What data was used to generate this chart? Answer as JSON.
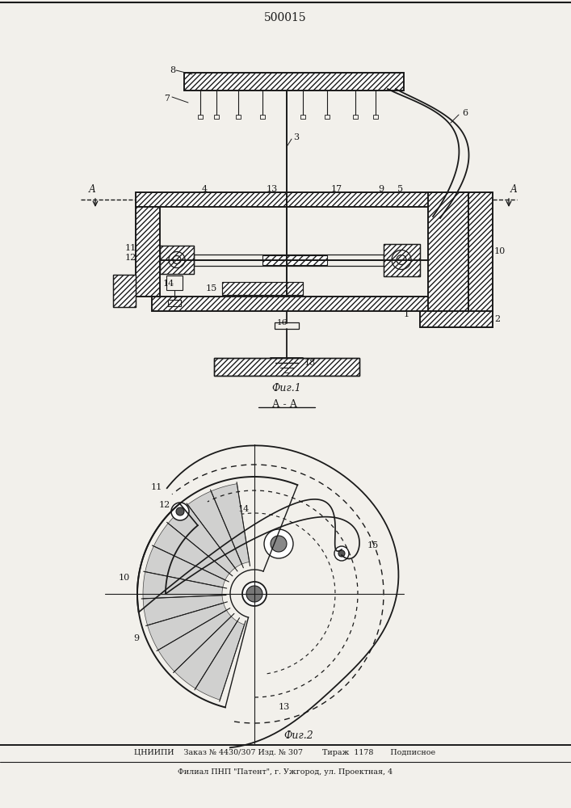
{
  "title": "500015",
  "fig1_label": "Фиг.1",
  "fig2_label": "Фиг.2",
  "section_label": "А - А",
  "bottom_line1": "ЦНИИПИ    Заказ № 4430/307 Изд. № 307        Тираж  1178       Подписное",
  "bottom_line2": "Филиал ПНП \"Патент\", г. Ужгород, ул. Проектная, 4",
  "bg_color": "#f2f0eb",
  "line_color": "#1a1a1a"
}
